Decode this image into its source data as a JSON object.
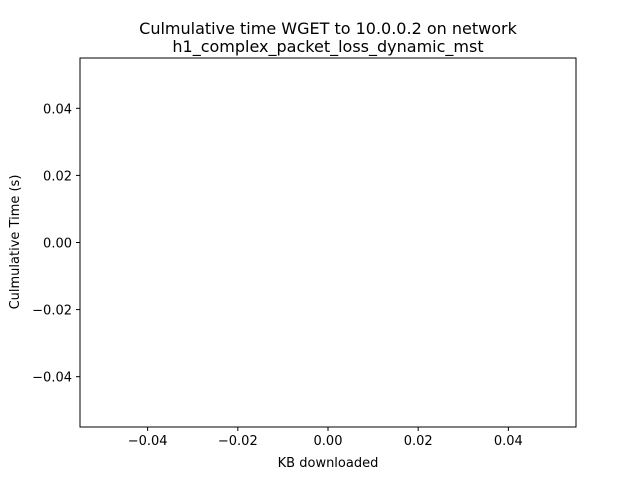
{
  "chart_data": {
    "type": "line",
    "title_lines": [
      "Culmulative time WGET to 10.0.0.2 on network",
      "h1_complex_packet_loss_dynamic_mst"
    ],
    "xlabel": "KB downloaded",
    "ylabel": "Culmulative Time (s)",
    "xlim": [
      -0.055,
      0.055
    ],
    "ylim": [
      -0.055,
      0.055
    ],
    "xticks": [
      -0.04,
      -0.02,
      0.0,
      0.02,
      0.04
    ],
    "yticks": [
      -0.04,
      -0.02,
      0.0,
      0.02,
      0.04
    ],
    "xtick_labels": [
      "−0.04",
      "−0.02",
      "0.00",
      "0.02",
      "0.04"
    ],
    "ytick_labels": [
      "−0.04",
      "−0.02",
      "0.00",
      "0.02",
      "0.04"
    ],
    "grid": false,
    "series": [],
    "colors": {
      "axes": "#000000",
      "background": "#ffffff"
    }
  }
}
